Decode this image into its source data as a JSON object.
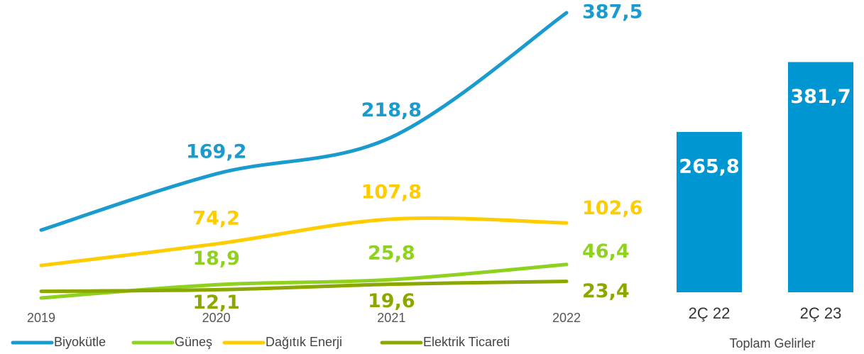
{
  "chart_data": [
    {
      "type": "line",
      "categories": [
        "2019",
        "2020",
        "2021",
        "2022"
      ],
      "ylim": [
        0,
        400
      ],
      "series": [
        {
          "name": "Biyokütle",
          "color": "#1a9bd0",
          "values": [
            93,
            169.2,
            218.8,
            387.5
          ],
          "value_labels": [
            null,
            "169,2",
            "218,8",
            "387,5"
          ]
        },
        {
          "name": "Güneş",
          "color": "#8fd11f",
          "values": [
            1,
            18.9,
            25.8,
            46.4
          ],
          "value_labels": [
            null,
            "18,9",
            "25,8",
            "46,4"
          ]
        },
        {
          "name": "Dağıtık Enerji",
          "color": "#ffcc00",
          "values": [
            45,
            74.2,
            107.8,
            102.6
          ],
          "value_labels": [
            null,
            "74,2",
            "107,8",
            "102,6"
          ]
        },
        {
          "name": "Elektrik Ticareti",
          "color": "#8aa800",
          "values": [
            10,
            12.1,
            19.6,
            23.4
          ],
          "value_labels": [
            null,
            "12,1",
            "19,6",
            "23,4"
          ]
        }
      ]
    },
    {
      "type": "bar",
      "categories": [
        "2Ç 22",
        "2Ç 23"
      ],
      "values": [
        265.8,
        381.7
      ],
      "value_labels": [
        "265,8",
        "381,7"
      ],
      "color": "#0096d1",
      "ylim": [
        0,
        450
      ],
      "xlabel": "Toplam Gelirler"
    }
  ]
}
